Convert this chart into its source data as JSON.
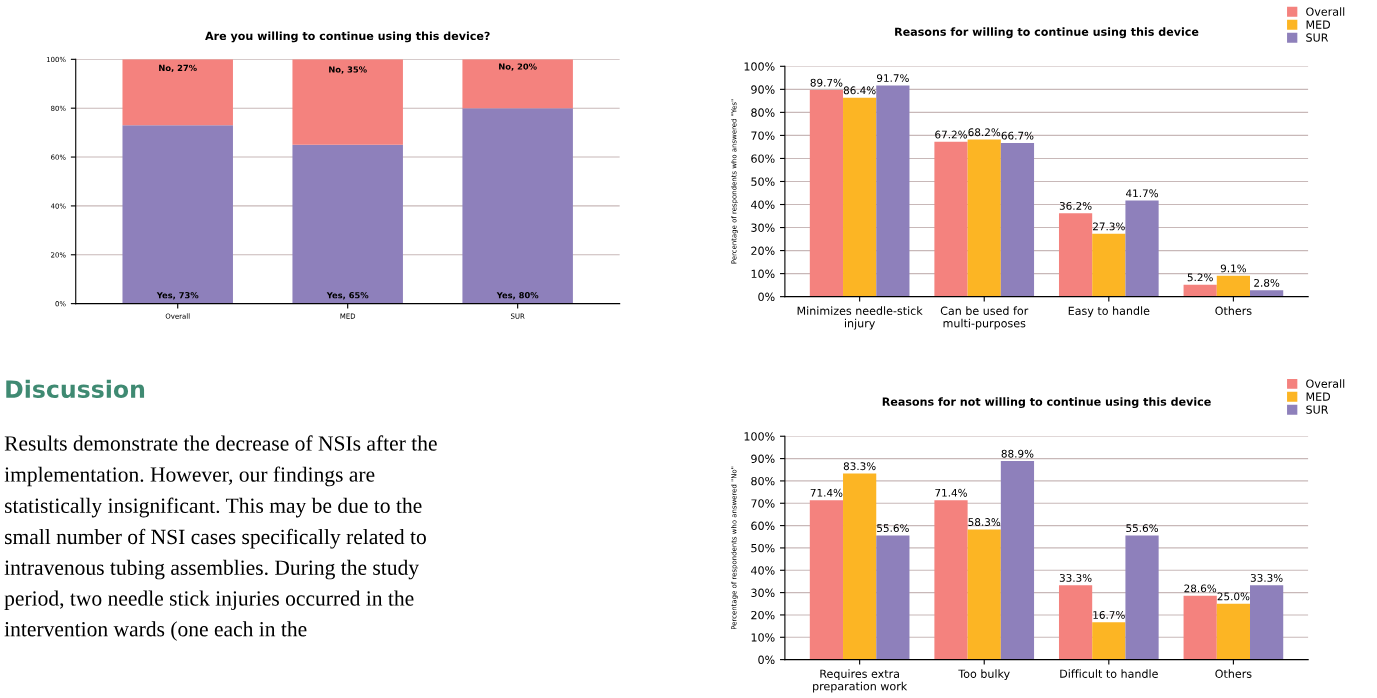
{
  "chart_data": [
    {
      "type": "bar",
      "title": "Are you willing to continue using this device?",
      "categories": [
        "Overall",
        "MED",
        "SUR"
      ],
      "stacked": true,
      "series": [
        {
          "color": "#8e80bb",
          "values": [
            73,
            65,
            80
          ],
          "value_labels": [
            "Yes, 73%",
            "Yes, 65%",
            "Yes, 80%"
          ]
        },
        {
          "color": "#f4827e",
          "values": [
            27,
            35,
            20
          ],
          "value_labels": [
            "No, 27%",
            "No, 35%",
            "No, 20%"
          ]
        }
      ],
      "ylim": [
        0,
        100
      ],
      "yticks": [
        {
          "value": 0,
          "label": "0%"
        },
        {
          "value": 20,
          "label": "20%"
        },
        {
          "value": 40,
          "label": "40%"
        },
        {
          "value": 60,
          "label": "60%"
        },
        {
          "value": 80,
          "label": "80%"
        },
        {
          "value": 100,
          "label": "100%"
        }
      ],
      "grid": "y",
      "legend": false
    },
    {
      "type": "bar",
      "title": "Reasons for willing to continue using this device",
      "ylabel": "Percentage of respondents who answered \"Yes\"",
      "categories": [
        "Minimizes needle-stick injury",
        "Can be used for multi-purposes",
        "Easy to handle",
        "Others"
      ],
      "series": [
        {
          "name": "Overall",
          "color": "#f4827e",
          "values": [
            89.7,
            67.2,
            36.2,
            5.2
          ],
          "value_labels": [
            "89.7%",
            "67.2%",
            "36.2%",
            "5.2%"
          ]
        },
        {
          "name": "MED",
          "color": "#fcb524",
          "values": [
            86.4,
            68.2,
            27.3,
            9.1
          ],
          "value_labels": [
            "86.4%",
            "68.2%",
            "27.3%",
            "9.1%"
          ]
        },
        {
          "name": "SUR",
          "color": "#8e80bb",
          "values": [
            91.7,
            66.7,
            41.7,
            2.8
          ],
          "value_labels": [
            "91.7%",
            "66.7%",
            "41.7%",
            "2.8%"
          ]
        }
      ],
      "ylim": [
        0,
        100
      ],
      "yticks": [
        {
          "value": 0,
          "label": "0%"
        },
        {
          "value": 10,
          "label": "10%"
        },
        {
          "value": 20,
          "label": "20%"
        },
        {
          "value": 30,
          "label": "30%"
        },
        {
          "value": 40,
          "label": "40%"
        },
        {
          "value": 50,
          "label": "50%"
        },
        {
          "value": 60,
          "label": "60%"
        },
        {
          "value": 70,
          "label": "70%"
        },
        {
          "value": 80,
          "label": "80%"
        },
        {
          "value": 90,
          "label": "90%"
        },
        {
          "value": 100,
          "label": "100%"
        }
      ],
      "grid": "y",
      "legend": "top right"
    },
    {
      "type": "other",
      "title": "Discussion",
      "annotations": [
        "Results demonstrate the decrease of NSIs after the implementation. However, our findings are statistically insignificant. This may be due to the small number of NSI cases specifically related to intravenous tubing assemblies. During the study period, two needle stick injuries occurred in the intervention wards (one each in the"
      ]
    },
    {
      "type": "bar",
      "title": "Reasons for not willing to continue using this device",
      "ylabel": "Percentage of respondents who answered \"No\"",
      "categories": [
        "Requires extra preparation work",
        "Too bulky",
        "Difficult to handle",
        "Others"
      ],
      "series": [
        {
          "name": "Overall",
          "color": "#f4827e",
          "values": [
            71.4,
            71.4,
            33.3,
            28.6
          ],
          "value_labels": [
            "71.4%",
            "71.4%",
            "33.3%",
            "28.6%"
          ]
        },
        {
          "name": "MED",
          "color": "#fcb524",
          "values": [
            83.3,
            58.3,
            16.7,
            25.0
          ],
          "value_labels": [
            "83.3%",
            "58.3%",
            "16.7%",
            "25.0%"
          ]
        },
        {
          "name": "SUR",
          "color": "#8e80bb",
          "values": [
            55.6,
            88.9,
            55.6,
            33.3
          ],
          "value_labels": [
            "55.6%",
            "88.9%",
            "55.6%",
            "33.3%"
          ]
        }
      ],
      "ylim": [
        0,
        100
      ],
      "yticks": [
        {
          "value": 0,
          "label": "0%"
        },
        {
          "value": 10,
          "label": "10%"
        },
        {
          "value": 20,
          "label": "20%"
        },
        {
          "value": 30,
          "label": "30%"
        },
        {
          "value": 40,
          "label": "40%"
        },
        {
          "value": 50,
          "label": "50%"
        },
        {
          "value": 60,
          "label": "60%"
        },
        {
          "value": 70,
          "label": "70%"
        },
        {
          "value": 80,
          "label": "80%"
        },
        {
          "value": 90,
          "label": "90%"
        },
        {
          "value": 100,
          "label": "100%"
        }
      ],
      "grid": "y",
      "legend": "top right"
    }
  ]
}
